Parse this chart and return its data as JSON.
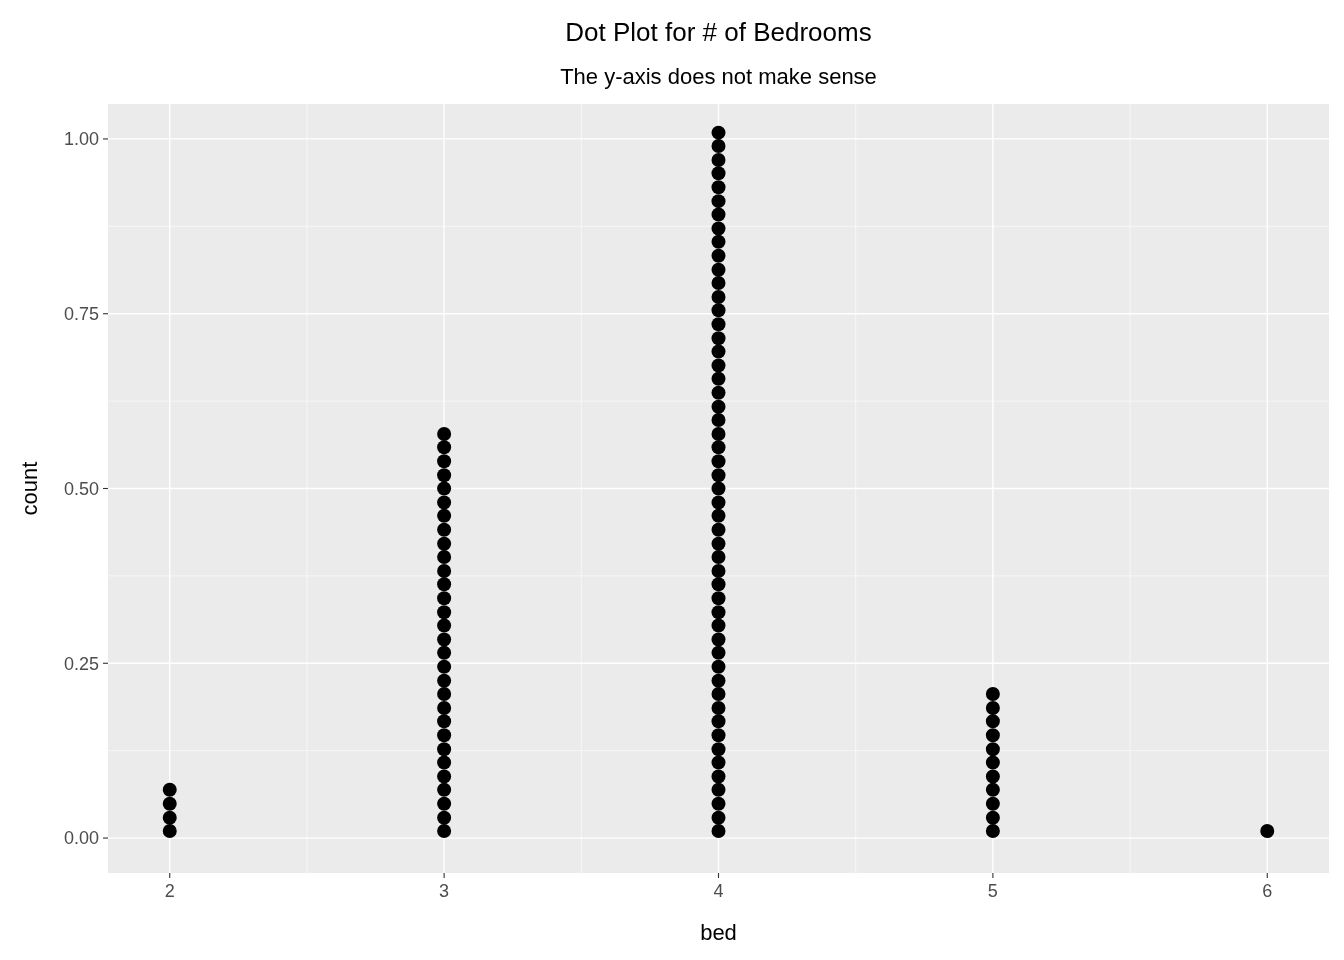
{
  "chart_data": {
    "type": "scatter",
    "title": "Dot Plot for # of Bedrooms",
    "subtitle": "The y-axis does not make sense",
    "xlabel": "bed",
    "ylabel": "count",
    "xlim": [
      1.775,
      6.225
    ],
    "xticks": [
      2,
      3,
      4,
      5,
      6
    ],
    "ylim": [
      -0.05,
      1.05
    ],
    "yticks": [
      {
        "value": 0,
        "label": "0.00"
      },
      {
        "value": 0.25,
        "label": "0.25"
      },
      {
        "value": 0.5,
        "label": "0.50"
      },
      {
        "value": 0.75,
        "label": "0.75"
      },
      {
        "value": 1,
        "label": "1.00"
      }
    ],
    "grid": true,
    "marker": "circle",
    "series": [
      {
        "color": "#000000",
        "x": [
          2,
          2,
          2,
          2
        ],
        "values": [
          0.01,
          0.029,
          0.049,
          0.069
        ]
      },
      {
        "color": "#000000",
        "x": [
          3,
          3,
          3,
          3,
          3,
          3,
          3,
          3,
          3,
          3,
          3,
          3,
          3,
          3,
          3,
          3,
          3,
          3,
          3,
          3,
          3,
          3,
          3,
          3,
          3,
          3,
          3,
          3,
          3,
          3
        ],
        "values": [
          0.01,
          0.029,
          0.049,
          0.069,
          0.088,
          0.108,
          0.127,
          0.147,
          0.167,
          0.186,
          0.206,
          0.225,
          0.245,
          0.265,
          0.284,
          0.304,
          0.323,
          0.343,
          0.363,
          0.382,
          0.402,
          0.421,
          0.441,
          0.461,
          0.48,
          0.5,
          0.519,
          0.539,
          0.559,
          0.578
        ]
      },
      {
        "color": "#000000",
        "x": [
          4,
          4,
          4,
          4,
          4,
          4,
          4,
          4,
          4,
          4,
          4,
          4,
          4,
          4,
          4,
          4,
          4,
          4,
          4,
          4,
          4,
          4,
          4,
          4,
          4,
          4,
          4,
          4,
          4,
          4,
          4,
          4,
          4,
          4,
          4,
          4,
          4,
          4,
          4,
          4,
          4,
          4,
          4,
          4,
          4,
          4,
          4,
          4,
          4,
          4,
          4,
          4
        ],
        "values": [
          0.01,
          0.029,
          0.049,
          0.069,
          0.088,
          0.108,
          0.127,
          0.147,
          0.167,
          0.186,
          0.206,
          0.225,
          0.245,
          0.265,
          0.284,
          0.304,
          0.323,
          0.343,
          0.363,
          0.382,
          0.402,
          0.421,
          0.441,
          0.461,
          0.48,
          0.5,
          0.519,
          0.539,
          0.559,
          0.578,
          0.598,
          0.617,
          0.637,
          0.657,
          0.676,
          0.696,
          0.715,
          0.735,
          0.755,
          0.774,
          0.794,
          0.813,
          0.833,
          0.853,
          0.872,
          0.892,
          0.911,
          0.931,
          0.951,
          0.97,
          0.99,
          1.009
        ]
      },
      {
        "color": "#000000",
        "x": [
          5,
          5,
          5,
          5,
          5,
          5,
          5,
          5,
          5,
          5,
          5
        ],
        "values": [
          0.01,
          0.029,
          0.049,
          0.069,
          0.088,
          0.108,
          0.127,
          0.147,
          0.167,
          0.186,
          0.206
        ]
      },
      {
        "color": "#000000",
        "x": [
          6
        ],
        "values": [
          0.01
        ]
      }
    ]
  }
}
